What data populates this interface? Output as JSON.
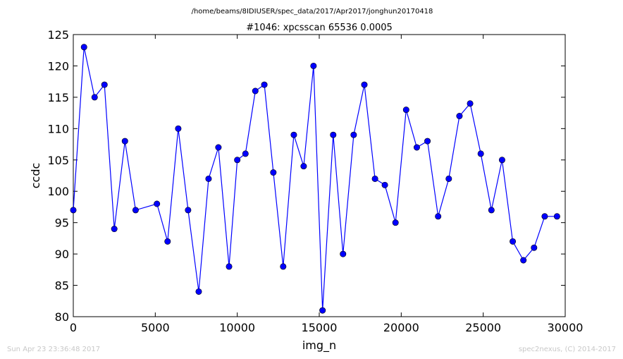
{
  "header": {
    "path": "/home/beams/8IDIUSER/spec_data/2017/Apr2017/jonghun20170418"
  },
  "footer": {
    "timestamp": "Sun Apr 23 23:36:48 2017",
    "credit": "spec2nexus, (C) 2014-2017"
  },
  "colors": {
    "series": "#0000ff",
    "frame": "#000000",
    "footer_text": "#c8c8c8"
  },
  "chart_data": {
    "type": "line",
    "title": "#1046: xpcsscan 65536 0.0005",
    "xlabel": "img_n",
    "ylabel": "ccdc",
    "xlim": [
      0,
      30000
    ],
    "ylim": [
      80,
      125
    ],
    "grid": false,
    "marker": "circle",
    "xticks": [
      0,
      5000,
      10000,
      15000,
      20000,
      25000,
      30000
    ],
    "yticks": [
      80,
      85,
      90,
      95,
      100,
      105,
      110,
      115,
      120,
      125
    ],
    "series": [
      {
        "x": [
          0,
          655,
          1300,
          1900,
          2500,
          3150,
          3800,
          5100,
          5750,
          6400,
          7000,
          7650,
          8250,
          8850,
          9500,
          10000,
          10500,
          11100,
          11650,
          12200,
          12800,
          13450,
          14050,
          14650,
          15200,
          15850,
          16450,
          17100,
          17750,
          18400,
          19000,
          19650,
          20300,
          20950,
          21600,
          22250,
          22900,
          23550,
          24200,
          24850,
          25500,
          26150,
          26800,
          27450,
          28100,
          28750,
          29500
        ],
        "y": [
          97,
          123,
          115,
          117,
          94,
          108,
          97,
          98,
          92,
          110,
          97,
          84,
          102,
          107,
          88,
          105,
          106,
          116,
          117,
          103,
          88,
          109,
          104,
          120,
          81,
          109,
          90,
          109,
          117,
          102,
          101,
          95,
          113,
          107,
          108,
          96,
          102,
          112,
          114,
          106,
          97,
          105,
          92,
          89,
          91,
          96,
          96
        ]
      }
    ]
  }
}
